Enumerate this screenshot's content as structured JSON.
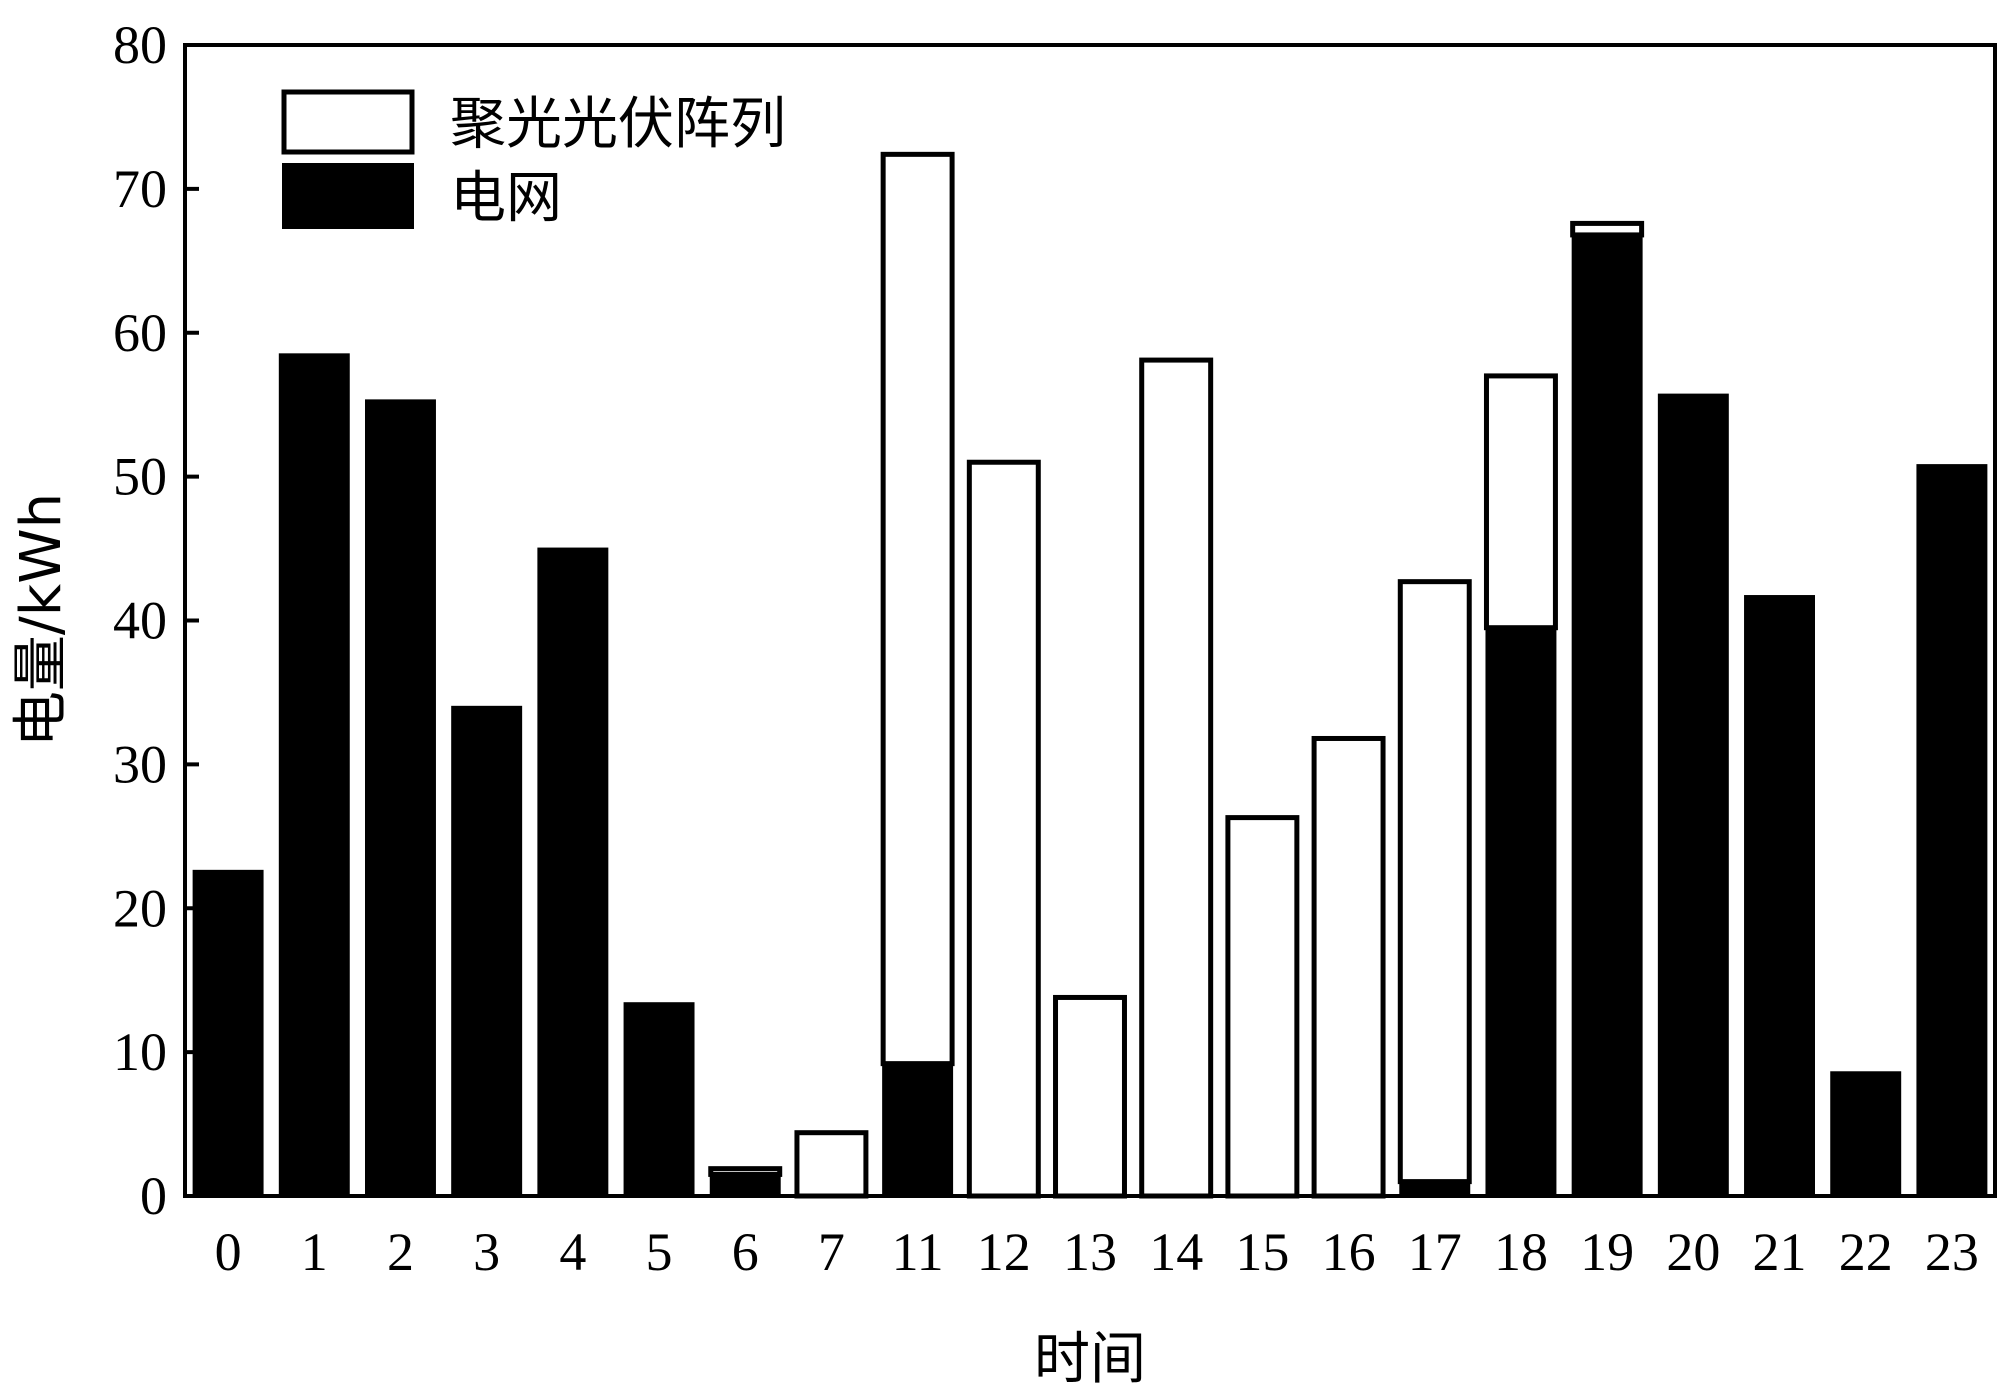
{
  "chart_data": {
    "type": "bar",
    "stacked": true,
    "categories": [
      "0",
      "1",
      "2",
      "3",
      "4",
      "5",
      "6",
      "7",
      "11",
      "12",
      "13",
      "14",
      "15",
      "16",
      "17",
      "18",
      "19",
      "20",
      "21",
      "22",
      "23"
    ],
    "series": [
      {
        "name": "电网",
        "color": "#000000",
        "values": [
          22.6,
          58.5,
          55.3,
          34.0,
          45.0,
          13.4,
          1.5,
          0,
          9.2,
          0,
          0,
          0,
          0,
          0,
          1.0,
          39.5,
          66.8,
          55.7,
          41.7,
          8.6,
          50.8
        ]
      },
      {
        "name": "聚光光伏阵列",
        "color": "#ffffff",
        "values": [
          0,
          0,
          0,
          0,
          0,
          0,
          0.4,
          4.4,
          63.2,
          51.0,
          13.8,
          58.1,
          26.3,
          31.8,
          41.7,
          17.5,
          0.8,
          0,
          0,
          0,
          0
        ]
      }
    ],
    "xlabel": "时间",
    "ylabel": "电量/kWh",
    "ylim": [
      0,
      80
    ],
    "yticks": [
      "0",
      "10",
      "20",
      "30",
      "40",
      "50",
      "60",
      "70",
      "80"
    ],
    "grid": false,
    "legend_position": "top-left"
  }
}
